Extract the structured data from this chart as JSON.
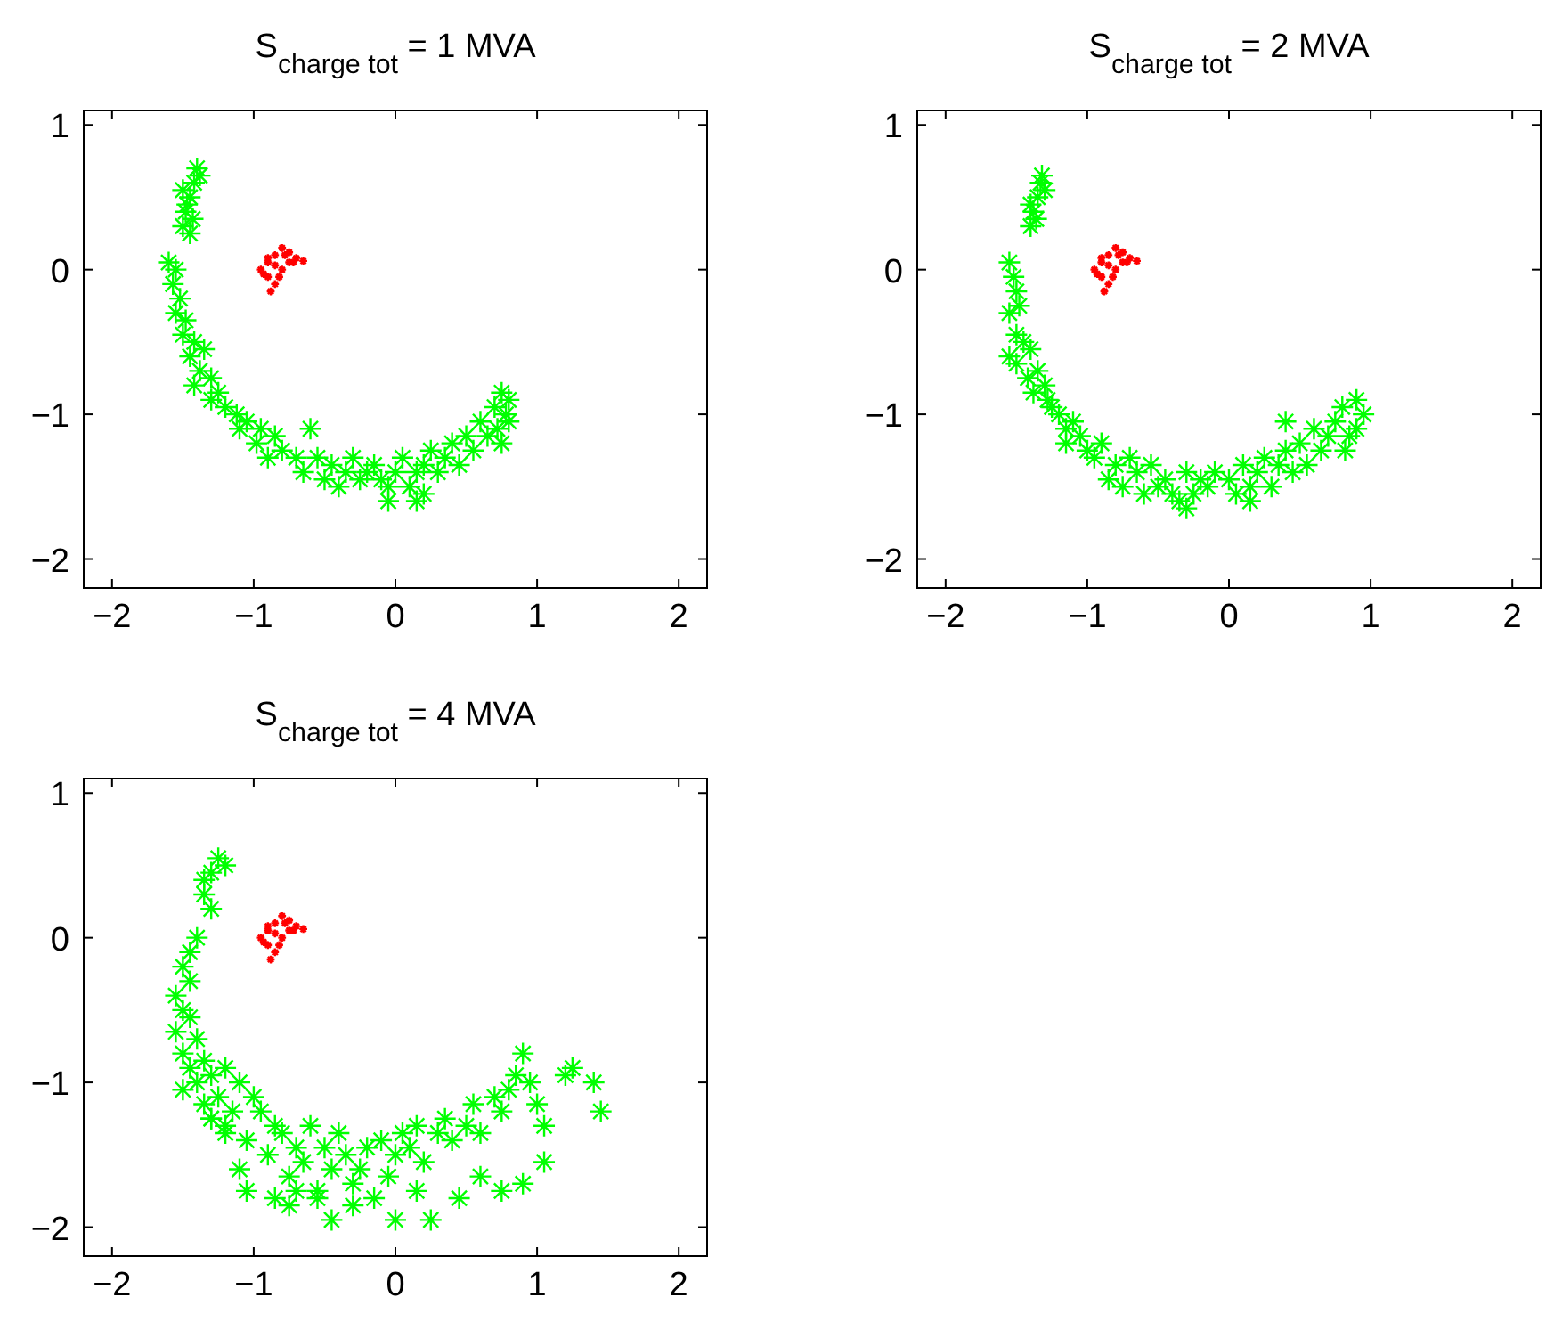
{
  "chart_data": [
    {
      "type": "scatter",
      "title": "S$_{charge tot}$ = 1 MVA",
      "xlim": [
        -2.2,
        2.2
      ],
      "ylim": [
        -2.2,
        1.1
      ],
      "xticks": [
        -2,
        -1,
        0,
        1,
        2
      ],
      "yticks": [
        -2,
        -1,
        0,
        1
      ],
      "marker": "cross",
      "series": [
        {
          "color": "#00ff00",
          "x": [
            -1.5,
            -1.48,
            -1.45,
            -1.42,
            -1.4,
            -1.5,
            -1.43,
            -1.38,
            -1.47,
            -1.45,
            -1.6,
            -1.55,
            -1.57,
            -1.52,
            -1.55,
            -1.48,
            -1.5,
            -1.42,
            -1.45,
            -1.35,
            -1.38,
            -1.3,
            -1.42,
            -1.25,
            -1.2,
            -1.3,
            -1.12,
            -1.05,
            -1.1,
            -0.95,
            -0.98,
            -0.85,
            -0.8,
            -0.9,
            -0.6,
            -0.7,
            -0.65,
            -0.55,
            -0.5,
            -0.45,
            -0.4,
            -0.35,
            -0.3,
            -0.25,
            -0.2,
            -0.15,
            -0.1,
            -0.05,
            0,
            0.05,
            0.1,
            0.15,
            0.2,
            0.2,
            0.25,
            0.3,
            0.35,
            0.4,
            0.45,
            0.5,
            0.55,
            0.6,
            0.65,
            0.7,
            0.72,
            0.75,
            0.78,
            0.8,
            0.8,
            0.75,
            -0.05,
            0.15
          ],
          "values": [
            0.3,
            0.4,
            0.5,
            0.6,
            0.7,
            0.55,
            0.35,
            0.65,
            0.45,
            0.25,
            0.05,
            0,
            -0.1,
            -0.2,
            -0.3,
            -0.35,
            -0.45,
            -0.5,
            -0.6,
            -0.55,
            -0.7,
            -0.75,
            -0.8,
            -0.85,
            -0.95,
            -0.9,
            -1,
            -1.05,
            -1.1,
            -1.1,
            -1.2,
            -1.15,
            -1.25,
            -1.3,
            -1.1,
            -1.3,
            -1.4,
            -1.3,
            -1.45,
            -1.35,
            -1.5,
            -1.4,
            -1.3,
            -1.45,
            -1.4,
            -1.35,
            -1.45,
            -1.5,
            -1.4,
            -1.3,
            -1.5,
            -1.4,
            -1.35,
            -1.55,
            -1.25,
            -1.4,
            -1.3,
            -1.2,
            -1.35,
            -1.15,
            -1.25,
            -1.05,
            -1.15,
            -0.95,
            -1.1,
            -0.85,
            -1.0,
            -0.9,
            -1.05,
            -1.2,
            -1.6,
            -1.6
          ]
        },
        {
          "color": "#ff0000",
          "x": [
            -0.95,
            -0.9,
            -0.85,
            -0.8,
            -0.75,
            -0.7,
            -0.65,
            -0.9,
            -0.85,
            -0.88,
            -0.8,
            -0.75,
            -0.85,
            -0.93,
            -0.78,
            -0.72,
            -0.82,
            -0.9
          ],
          "values": [
            0,
            0.05,
            0.1,
            0.15,
            0.12,
            0.08,
            0.06,
            -0.05,
            -0.1,
            -0.15,
            0,
            0.05,
            0.03,
            -0.03,
            0.1,
            0.05,
            -0.05,
            0.08
          ]
        }
      ]
    },
    {
      "type": "scatter",
      "title": "S$_{charge tot}$ = 2 MVA",
      "xlim": [
        -2.2,
        2.2
      ],
      "ylim": [
        -2.2,
        1.1
      ],
      "xticks": [
        -2,
        -1,
        0,
        1,
        2
      ],
      "yticks": [
        -2,
        -1,
        0,
        1
      ],
      "marker": "cross",
      "series": [
        {
          "color": "#00ff00",
          "x": [
            -1.4,
            -1.38,
            -1.35,
            -1.33,
            -1.3,
            -1.4,
            -1.36,
            -1.32,
            -1.55,
            -1.52,
            -1.5,
            -1.55,
            -1.48,
            -1.5,
            -1.55,
            -1.45,
            -1.5,
            -1.4,
            -1.42,
            -1.35,
            -1.38,
            -1.3,
            -1.25,
            -1.28,
            -1.2,
            -1.15,
            -1.1,
            -1.15,
            -1.05,
            -1.0,
            -0.95,
            -0.9,
            -0.8,
            -0.85,
            -0.7,
            -0.75,
            -0.65,
            -0.6,
            -0.55,
            -0.5,
            -0.45,
            -0.4,
            -0.3,
            -0.35,
            -0.2,
            -0.25,
            -0.1,
            -0.15,
            0,
            0.05,
            0.1,
            0.15,
            0.2,
            0.25,
            0.3,
            0.35,
            0.4,
            0.45,
            0.5,
            0.55,
            0.6,
            0.65,
            0.7,
            0.75,
            0.8,
            0.85,
            0.9,
            0.95,
            0.9,
            0.82,
            -0.3,
            0.15,
            0.4
          ],
          "values": [
            0.3,
            0.4,
            0.5,
            0.6,
            0.55,
            0.45,
            0.35,
            0.65,
            0.05,
            -0.05,
            -0.15,
            -0.3,
            -0.25,
            -0.45,
            -0.6,
            -0.5,
            -0.65,
            -0.55,
            -0.75,
            -0.7,
            -0.85,
            -0.8,
            -0.95,
            -0.9,
            -1.0,
            -1.1,
            -1.05,
            -1.2,
            -1.15,
            -1.25,
            -1.3,
            -1.2,
            -1.35,
            -1.45,
            -1.3,
            -1.5,
            -1.4,
            -1.55,
            -1.35,
            -1.5,
            -1.45,
            -1.55,
            -1.4,
            -1.6,
            -1.45,
            -1.55,
            -1.4,
            -1.5,
            -1.45,
            -1.55,
            -1.35,
            -1.5,
            -1.4,
            -1.3,
            -1.5,
            -1.35,
            -1.25,
            -1.4,
            -1.2,
            -1.35,
            -1.1,
            -1.25,
            -1.15,
            -1.05,
            -0.95,
            -1.15,
            -0.9,
            -1.0,
            -1.1,
            -1.25,
            -1.65,
            -1.6,
            -1.05
          ]
        },
        {
          "color": "#ff0000",
          "x": [
            -0.95,
            -0.9,
            -0.85,
            -0.8,
            -0.75,
            -0.7,
            -0.65,
            -0.9,
            -0.85,
            -0.88,
            -0.8,
            -0.75,
            -0.85,
            -0.93,
            -0.78,
            -0.72,
            -0.82,
            -0.9
          ],
          "values": [
            0,
            0.05,
            0.1,
            0.15,
            0.12,
            0.08,
            0.06,
            -0.05,
            -0.1,
            -0.15,
            0,
            0.05,
            0.03,
            -0.03,
            0.1,
            0.05,
            -0.05,
            0.08
          ]
        }
      ]
    },
    {
      "type": "scatter",
      "title": "S$_{charge tot}$ = 4 MVA",
      "xlim": [
        -2.2,
        2.2
      ],
      "ylim": [
        -2.2,
        1.1
      ],
      "xticks": [
        -2,
        -1,
        0,
        1,
        2
      ],
      "yticks": [
        -2,
        -1,
        0,
        1
      ],
      "marker": "cross",
      "series": [
        {
          "color": "#00ff00",
          "x": [
            -1.35,
            -1.3,
            -1.25,
            -1.2,
            -1.35,
            -1.3,
            -1.4,
            -1.45,
            -1.5,
            -1.45,
            -1.55,
            -1.5,
            -1.45,
            -1.55,
            -1.4,
            -1.5,
            -1.35,
            -1.45,
            -1.3,
            -1.5,
            -1.4,
            -1.35,
            -1.25,
            -1.2,
            -1.3,
            -1.15,
            -1.1,
            -1.2,
            -1.0,
            -0.95,
            -1.05,
            -0.85,
            -0.9,
            -1.1,
            -1.05,
            -0.8,
            -0.7,
            -0.75,
            -0.6,
            -0.65,
            -0.55,
            -0.5,
            -0.45,
            -0.4,
            -0.35,
            -0.3,
            -0.2,
            -0.25,
            -0.1,
            -0.05,
            0,
            0.05,
            0.1,
            0.15,
            0.2,
            0.3,
            0.35,
            0.4,
            0.5,
            0.55,
            0.6,
            0.7,
            0.75,
            0.8,
            0.85,
            0.9,
            0.95,
            1.0,
            1.05,
            1.2,
            1.25,
            1.4,
            1.45,
            -0.85,
            -0.7,
            -0.55,
            -0.45,
            -0.3,
            -0.15,
            0,
            0.15,
            0.25,
            0.45,
            0.6,
            0.75,
            0.9,
            1.05,
            -1.3,
            -1.2,
            -0.75
          ],
          "values": [
            0.3,
            0.45,
            0.55,
            0.5,
            0.4,
            0.2,
            0,
            -0.1,
            -0.2,
            -0.3,
            -0.4,
            -0.5,
            -0.55,
            -0.65,
            -0.7,
            -0.8,
            -0.85,
            -0.9,
            -0.95,
            -1.05,
            -1.0,
            -1.15,
            -1.1,
            -0.9,
            -1.25,
            -1.2,
            -1.0,
            -1.3,
            -1.1,
            -1.2,
            -1.4,
            -1.3,
            -1.5,
            -1.6,
            -1.75,
            -1.35,
            -1.45,
            -1.65,
            -1.3,
            -1.55,
            -1.75,
            -1.45,
            -1.6,
            -1.35,
            -1.5,
            -1.7,
            -1.45,
            -1.6,
            -1.4,
            -1.65,
            -1.5,
            -1.35,
            -1.45,
            -1.3,
            -1.55,
            -1.35,
            -1.25,
            -1.4,
            -1.3,
            -1.15,
            -1.35,
            -1.1,
            -1.2,
            -1.05,
            -0.95,
            -0.8,
            -1.0,
            -1.15,
            -1.3,
            -0.95,
            -0.9,
            -1.0,
            -1.2,
            -1.8,
            -1.75,
            -1.8,
            -1.95,
            -1.85,
            -1.8,
            -1.95,
            -1.75,
            -1.95,
            -1.8,
            -1.65,
            -1.75,
            -1.7,
            -1.55,
            -1.25,
            -1.35,
            -1.85
          ]
        },
        {
          "color": "#ff0000",
          "x": [
            -0.95,
            -0.9,
            -0.85,
            -0.8,
            -0.75,
            -0.7,
            -0.65,
            -0.9,
            -0.85,
            -0.88,
            -0.8,
            -0.75,
            -0.85,
            -0.93,
            -0.78,
            -0.72,
            -0.82,
            -0.9
          ],
          "values": [
            0,
            0.05,
            0.1,
            0.15,
            0.12,
            0.08,
            0.06,
            -0.05,
            -0.1,
            -0.15,
            0,
            0.05,
            0.03,
            -0.03,
            0.1,
            0.05,
            -0.05,
            0.08
          ]
        }
      ]
    }
  ]
}
